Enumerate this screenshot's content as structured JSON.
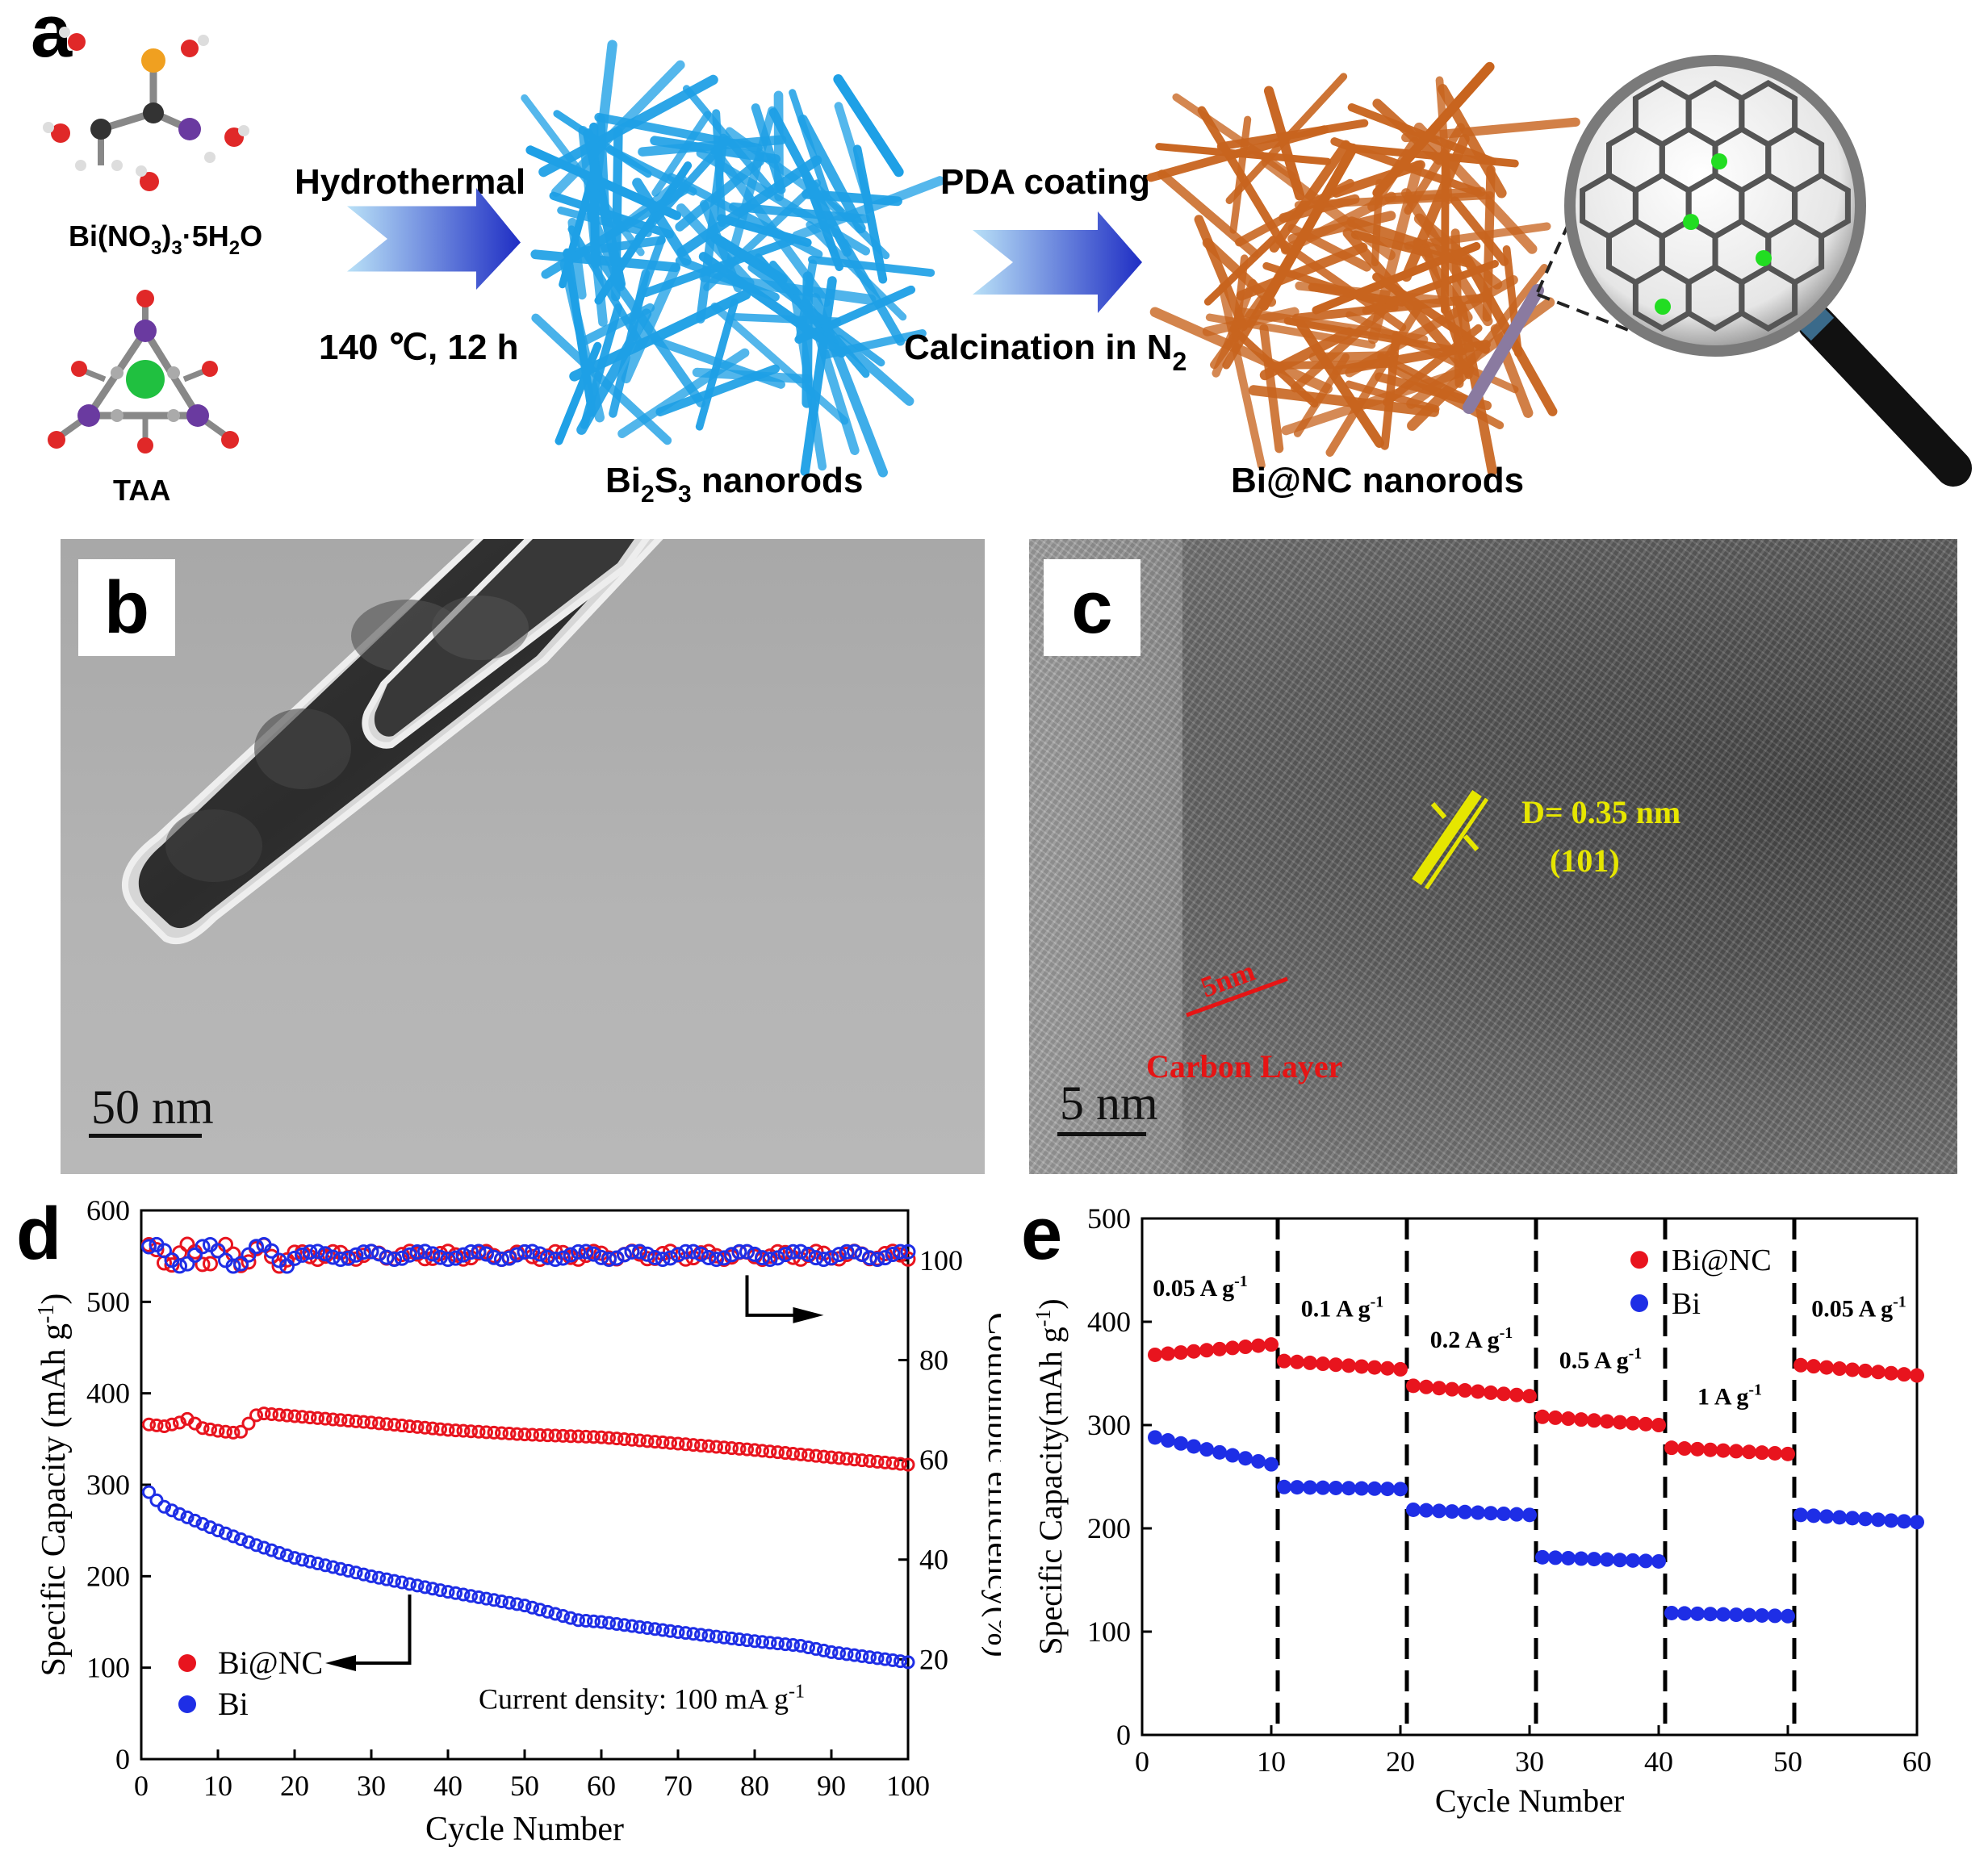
{
  "panel_a": {
    "letter": "a",
    "precursor_1": {
      "text": "Bi(NO",
      "sub1": "3",
      "mid": ")",
      "sub2": "3",
      "tail": "·5H",
      "sub3": "2",
      "end": "O"
    },
    "precursor_2": "TAA",
    "step_1_top": "Hydrothermal",
    "step_1_bottom": "140 ℃, 12 h",
    "intermediate": {
      "text": "Bi",
      "sub1": "2",
      "mid": "S",
      "sub2": "3",
      "tail": " nanorods"
    },
    "step_2_top": "PDA coating",
    "step_2_bottom": {
      "text": "Calcination in N",
      "sub": "2"
    },
    "product": "Bi@NC nanorods",
    "colors": {
      "bi2s3": "#1ea0e6",
      "binc": "#c8641e",
      "arrow_start": "#a8d8f5",
      "arrow_end": "#1f2ec4"
    }
  },
  "panel_b": {
    "letter": "b",
    "scale_bar": "50 nm"
  },
  "panel_c": {
    "letter": "c",
    "scale_bar": "5 nm",
    "d_spacing": "D= 0.35 nm",
    "plane": "(101)",
    "carbon_thickness": "5nm",
    "carbon_label": "Carbon Layer"
  },
  "chart_data": [
    {
      "panel": "d",
      "type": "scatter",
      "xlabel": "Cycle Number",
      "ylabel": "Specific Capacity (mAh g",
      "ylabel_sup": "-1",
      "ylabel_end": ")",
      "y2label": "Coulombic efficiency(%)",
      "xlim": [
        0,
        100
      ],
      "ylim": [
        0,
        600
      ],
      "y2lim": [
        0,
        110
      ],
      "xticks": [
        0,
        10,
        20,
        30,
        40,
        50,
        60,
        70,
        80,
        90,
        100
      ],
      "yticks": [
        0,
        100,
        200,
        300,
        400,
        500,
        600
      ],
      "y2ticks": [
        20,
        40,
        60,
        80,
        100
      ],
      "annotation": "Current density: 100 mA g",
      "annotation_sup": "-1",
      "legend": [
        "Bi@NC",
        "Bi"
      ],
      "series": [
        {
          "name": "Bi@NC",
          "color": "#e8141e",
          "capacity_points": [
            [
              1,
              366
            ],
            [
              3,
              364
            ],
            [
              5,
              368
            ],
            [
              6,
              372
            ],
            [
              8,
              362
            ],
            [
              10,
              359
            ],
            [
              12,
              357
            ],
            [
              13,
              358
            ],
            [
              15,
              376
            ],
            [
              16,
              378
            ],
            [
              20,
              375
            ],
            [
              30,
              368
            ],
            [
              40,
              360
            ],
            [
              50,
              355
            ],
            [
              60,
              352
            ],
            [
              70,
              345
            ],
            [
              80,
              338
            ],
            [
              90,
              330
            ],
            [
              100,
              322
            ]
          ],
          "efficiency": 101
        },
        {
          "name": "Bi",
          "color": "#1e2ee6",
          "capacity_points": [
            [
              1,
              292
            ],
            [
              2,
              283
            ],
            [
              3,
              276
            ],
            [
              5,
              268
            ],
            [
              10,
              250
            ],
            [
              15,
              234
            ],
            [
              20,
              220
            ],
            [
              30,
              200
            ],
            [
              40,
              183
            ],
            [
              50,
              168
            ],
            [
              57,
              152
            ],
            [
              60,
              150
            ],
            [
              70,
              139
            ],
            [
              80,
              129
            ],
            [
              86,
              124
            ],
            [
              90,
              117
            ],
            [
              100,
              106
            ]
          ],
          "efficiency": 101
        }
      ]
    },
    {
      "panel": "e",
      "type": "scatter",
      "xlabel": "Cycle Number",
      "ylabel": "Specific Capacity(mAh g",
      "ylabel_sup": "-1",
      "ylabel_end": ")",
      "xlim": [
        0,
        60
      ],
      "ylim": [
        0,
        500
      ],
      "xticks": [
        0,
        10,
        20,
        30,
        40,
        50,
        60
      ],
      "yticks": [
        0,
        100,
        200,
        300,
        400,
        500
      ],
      "legend": [
        "Bi@NC",
        "Bi"
      ],
      "rate_labels": [
        {
          "text": "0.05 A g",
          "sup": "-1",
          "x": 4.5,
          "y": 425
        },
        {
          "text": "0.1 A g",
          "sup": "-1",
          "x": 15.5,
          "y": 405
        },
        {
          "text": "0.2 A g",
          "sup": "-1",
          "x": 25.5,
          "y": 375
        },
        {
          "text": "0.5 A g",
          "sup": "-1",
          "x": 35.5,
          "y": 355
        },
        {
          "text": "1 A g",
          "sup": "-1",
          "x": 45.5,
          "y": 320
        },
        {
          "text": "0.05 A g",
          "sup": "-1",
          "x": 55.5,
          "y": 405
        }
      ],
      "dividers": [
        10.5,
        20.5,
        30.5,
        40.5,
        50.5
      ],
      "series": [
        {
          "name": "Bi@NC",
          "color": "#e8141e",
          "segments": [
            [
              1,
              10,
              368,
              378
            ],
            [
              11,
              20,
              362,
              354
            ],
            [
              21,
              30,
              338,
              328
            ],
            [
              31,
              40,
              308,
              300
            ],
            [
              41,
              50,
              278,
              272
            ],
            [
              51,
              60,
              358,
              348
            ]
          ]
        },
        {
          "name": "Bi",
          "color": "#1e2ee6",
          "segments": [
            [
              1,
              10,
              288,
              262
            ],
            [
              11,
              20,
              240,
              238
            ],
            [
              21,
              30,
              218,
              213
            ],
            [
              31,
              40,
              172,
              168
            ],
            [
              41,
              50,
              118,
              115
            ],
            [
              51,
              60,
              213,
              206
            ]
          ]
        }
      ]
    }
  ]
}
